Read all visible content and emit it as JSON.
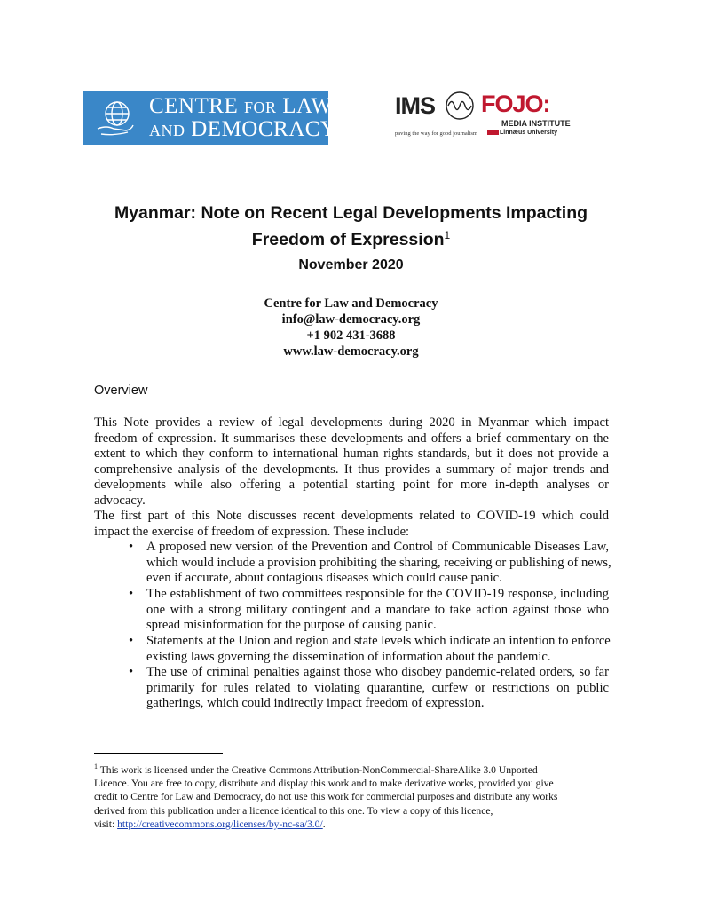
{
  "logos": {
    "cld": {
      "line1_big": "C",
      "line1": "ENTRE FOR ",
      "line1b": "L",
      "line1c": "AW",
      "text": "Centre for Law and Democracy",
      "color": "#3a87c8"
    },
    "ims": {
      "ims": "IMS",
      "fojo": "FOJO:",
      "media": "MEDIA INSTITUTE",
      "tagline": "paving the way for good journalism",
      "university": "Linnæus University",
      "red": "#c0182f"
    }
  },
  "title": {
    "line1": "Myanmar: Note on Recent Legal Developments Impacting",
    "line2": "Freedom of Expression",
    "footnote_ref": "1"
  },
  "date": "November 2020",
  "contact": [
    "Centre for Law and Democracy",
    "info@law-democracy.org",
    "+1 902 431-3688",
    "www.law-democracy.org"
  ],
  "section_heading": "Overview",
  "paragraphs": [
    [
      "This Note provides a review of legal developments during 2020 in Myanmar which impact",
      "freedom of expression. It summarises these developments and offers a brief commentary on the",
      "extent to which they conform to international human rights standards, but it does not provide a",
      "comprehensive analysis of the developments. It thus provides a summary of major trends and",
      "developments while also offering a potential starting point for more in-depth analyses or",
      "advocacy."
    ],
    [
      "The first part of this Note discusses recent developments related to COVID-19 which could",
      "impact the exercise of freedom of expression. These include:"
    ]
  ],
  "bullets": [
    [
      "A proposed new version of the Prevention and Control of Communicable Diseases Law,",
      "which would include a provision prohibiting the sharing, receiving or publishing of news,",
      "even if accurate, about contagious diseases which could cause panic."
    ],
    [
      "The establishment of two committees responsible for the COVID-19 response, including",
      "one with a strong military contingent and a mandate to take action against those who",
      "spread misinformation for the purpose of causing panic."
    ],
    [
      "Statements at the Union and region and state levels which indicate an intention to enforce",
      "existing laws governing the dissemination of information about the pandemic."
    ],
    [
      "The use of criminal penalties against those who disobey pandemic-related orders, so far",
      "primarily for rules related to violating quarantine, curfew or restrictions on public",
      "gatherings, which could indirectly impact freedom of expression."
    ]
  ],
  "bullet_glyph": "•",
  "footnote": {
    "number": "1",
    "lines": [
      "This work is licensed under the Creative Commons Attribution-NonCommercial-ShareAlike 3.0 Unported",
      "Licence. You are free to copy, distribute and display this work and to make derivative works, provided you give",
      "credit to Centre for Law and Democracy, do not use this work for commercial purposes and distribute any works",
      "derived from this publication under a licence identical to this one. To view a copy of this licence,"
    ],
    "visit_label": "visit: ",
    "link": "http://creativecommons.org/licenses/by-nc-sa/3.0/",
    "after_link": "."
  }
}
